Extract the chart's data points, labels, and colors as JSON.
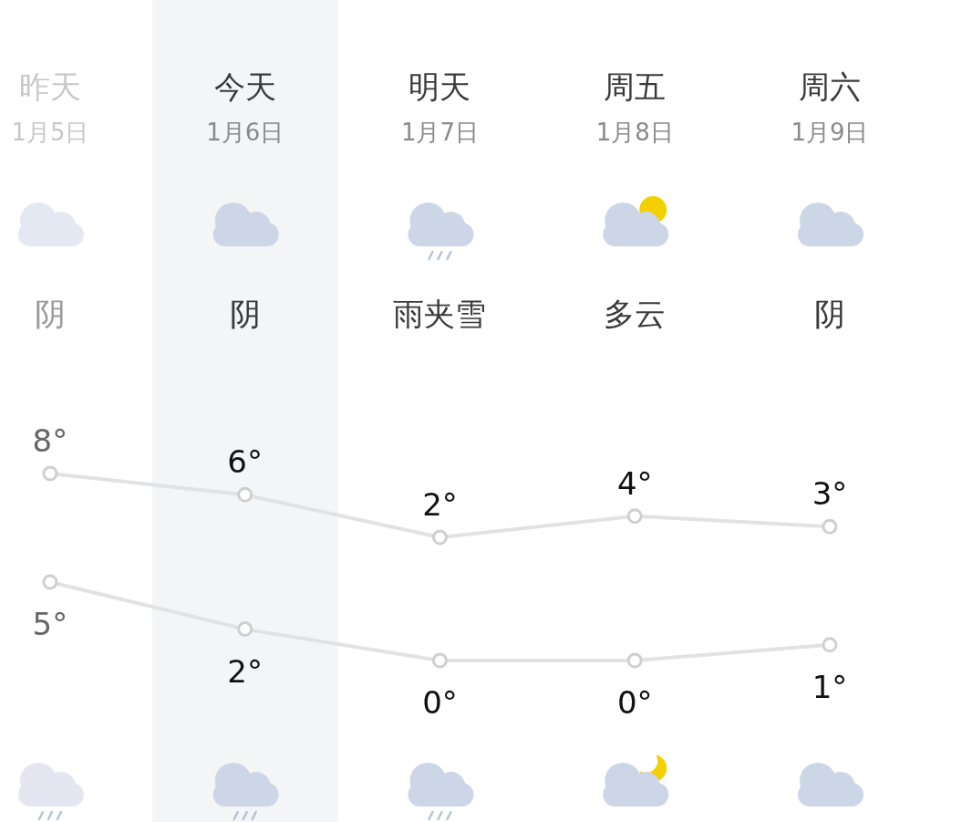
{
  "chart_data": [
    {
      "type": "line",
      "categories": [
        "昨天",
        "今天",
        "明天",
        "周五",
        "周六"
      ],
      "series": [
        {
          "color": "#e2e2e2",
          "values": [
            8,
            6,
            2,
            4,
            3
          ],
          "value_labels": [
            "8°",
            "6°",
            "2°",
            "4°",
            "3°"
          ]
        }
      ],
      "marker": "circle",
      "bands": [
        {
          "axis": "x",
          "from": "今天",
          "to": "今天",
          "color": "#f4f5f7"
        }
      ],
      "annotations": [
        "1月5日",
        "阴",
        "1月6日",
        "阴",
        "1月7日",
        "雨夹雪",
        "1月8日",
        "多云",
        "1月9日",
        "阴"
      ]
    },
    {
      "type": "line",
      "categories": [
        "昨天",
        "今天",
        "明天",
        "周五",
        "周六"
      ],
      "tick_labels": false,
      "series": [
        {
          "color": "#e2e2e2",
          "values": [
            5,
            2,
            0,
            0,
            1
          ],
          "value_labels": [
            "5°",
            "2°",
            "0°",
            "0°",
            "1°"
          ]
        }
      ],
      "marker": "circle"
    }
  ]
}
